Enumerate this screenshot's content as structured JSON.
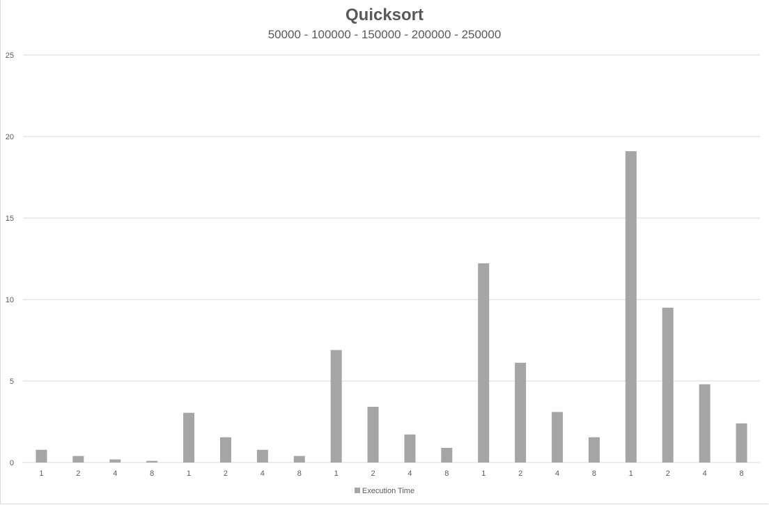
{
  "chart_data": {
    "type": "bar",
    "title": "Quicksort",
    "subtitle": "50000 - 100000 - 150000 - 200000 - 250000",
    "categories": [
      "1",
      "2",
      "4",
      "8",
      "1",
      "2",
      "4",
      "8",
      "1",
      "2",
      "4",
      "8",
      "1",
      "2",
      "4",
      "8",
      "1",
      "2",
      "4",
      "8"
    ],
    "series": [
      {
        "name": "Execution Time",
        "color": "#a5a5a5",
        "values": [
          0.78,
          0.4,
          0.19,
          0.1,
          3.05,
          1.55,
          0.78,
          0.4,
          6.9,
          3.42,
          1.72,
          0.9,
          12.22,
          6.12,
          3.1,
          1.55,
          19.1,
          9.5,
          4.8,
          2.4
        ]
      }
    ],
    "yticks": [
      "0",
      "5",
      "10",
      "15",
      "20",
      "25"
    ],
    "ylim": [
      0,
      25
    ],
    "grid": true,
    "legend": "bottom"
  }
}
